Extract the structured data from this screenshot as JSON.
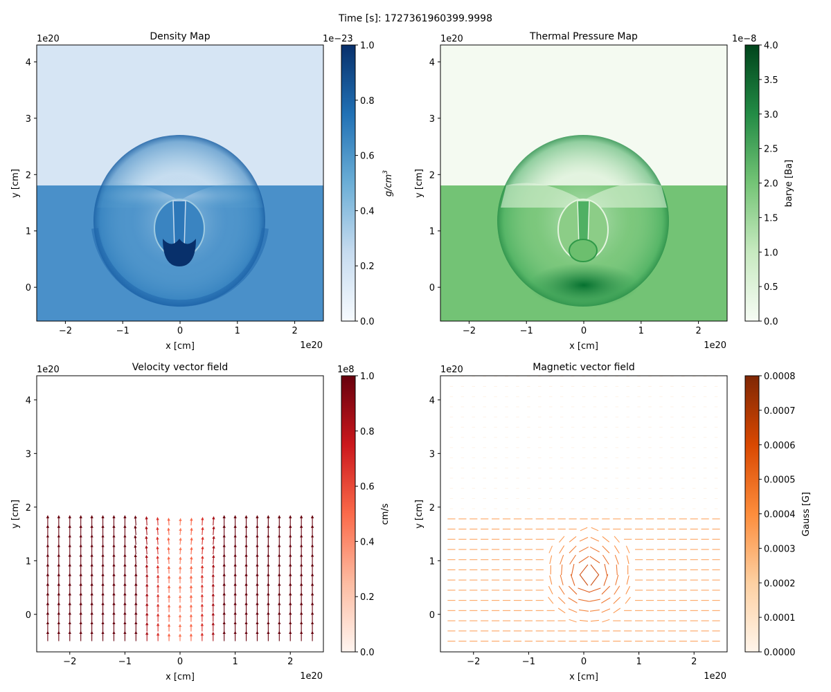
{
  "suptitle": "Time [s]: 1727361960399.9998",
  "chart_data": [
    {
      "type": "heatmap",
      "title": "Density Map",
      "xlabel": "x [cm]",
      "ylabel": "y [cm]",
      "x_multiplier": "1e20",
      "y_multiplier": "1e20",
      "xlim": [
        -2.5,
        2.5
      ],
      "ylim": [
        -0.6,
        4.3
      ],
      "xticks": [
        -2,
        -1,
        0,
        1,
        2
      ],
      "yticks": [
        0,
        1,
        2,
        3,
        4
      ],
      "colormap": "Blues",
      "colorbar": {
        "label": "g/cm3",
        "multiplier": "1e−23",
        "range": [
          0.0,
          1.0
        ],
        "ticks": [
          "0.0",
          "0.2",
          "0.4",
          "0.6",
          "0.8",
          "1.0"
        ]
      },
      "features": {
        "interface_y": 1.8,
        "upper_value": 0.16,
        "lower_value": 0.62,
        "shock_shell": {
          "center": [
            0.05,
            1.3
          ],
          "radius": 1.55,
          "shell_bottom_y": -0.35
        },
        "dense_core": {
          "center": [
            0.0,
            0.65
          ],
          "value": 1.0
        },
        "cap_apex_y": 1.55
      }
    },
    {
      "type": "heatmap",
      "title": "Thermal Pressure Map",
      "xlabel": "x [cm]",
      "ylabel": "y [cm]",
      "x_multiplier": "1e20",
      "y_multiplier": "1e20",
      "xlim": [
        -2.5,
        2.5
      ],
      "ylim": [
        -0.6,
        4.3
      ],
      "xticks": [
        -2,
        -1,
        0,
        1,
        2
      ],
      "yticks": [
        0,
        1,
        2,
        3,
        4
      ],
      "colormap": "Greens",
      "colorbar": {
        "label": "barye [Ba]",
        "multiplier": "1e−8",
        "range": [
          0.0,
          4.0
        ],
        "ticks": [
          "0.0",
          "0.5",
          "1.0",
          "1.5",
          "2.0",
          "2.5",
          "3.0",
          "3.5",
          "4.0"
        ]
      },
      "features": {
        "interface_y": 1.8,
        "upper_value": 0.05,
        "lower_value": 1.95,
        "shock_shell": {
          "center": [
            0.05,
            1.3
          ],
          "radius": 1.55,
          "shell_bottom_y": -0.35
        },
        "peak_center": [
          0.0,
          0.0
        ],
        "peak_value": 3.5
      }
    },
    {
      "type": "quiver",
      "title": "Velocity vector field",
      "xlabel": "x [cm]",
      "ylabel": "y [cm]",
      "x_multiplier": "1e20",
      "y_multiplier": "1e20",
      "xlim": [
        -2.6,
        2.6
      ],
      "ylim": [
        -0.7,
        4.45
      ],
      "xticks": [
        -2,
        -1,
        0,
        1,
        2
      ],
      "yticks": [
        0,
        1,
        2,
        3,
        4
      ],
      "colormap": "Reds",
      "colorbar": {
        "label": "cm/s",
        "multiplier": "1e8",
        "range": [
          0.0,
          1.0
        ],
        "ticks": [
          "0.0",
          "0.2",
          "0.4",
          "0.6",
          "0.8",
          "1.0"
        ]
      },
      "grid": {
        "x_start": -2.4,
        "x_step": 0.2,
        "nx": 25,
        "y_start": -0.5,
        "y_step": 0.18,
        "ny": 13
      },
      "flow": "vertical upward columns of magnitude ~1.0 away from center; divergent flow near x=0 below interface y~1.9"
    },
    {
      "type": "quiver",
      "title": "Magnetic vector field",
      "xlabel": "x [cm]",
      "ylabel": "y [cm]",
      "x_multiplier": "1e20",
      "y_multiplier": "1e20",
      "xlim": [
        -2.6,
        2.6
      ],
      "ylim": [
        -0.7,
        4.45
      ],
      "xticks": [
        -2,
        -1,
        0,
        1,
        2
      ],
      "yticks": [
        0,
        1,
        2,
        3,
        4
      ],
      "colormap": "Oranges",
      "colorbar": {
        "label": "Gauss [G]",
        "multiplier": "",
        "range": [
          0.0,
          0.0008
        ],
        "ticks": [
          "0.0000",
          "0.0001",
          "0.0002",
          "0.0003",
          "0.0004",
          "0.0005",
          "0.0006",
          "0.0007",
          "0.0008"
        ]
      },
      "grid": {
        "x_start": -2.4,
        "x_step": 0.2,
        "nx": 25,
        "y_start": -0.5,
        "y_step": 0.19,
        "ny": 27
      },
      "field": "horizontal field (~0.00025 G) below y~1.8, near-zero above; swirling stronger vectors (~0.0005 G) around (0.2, 0.6)"
    }
  ]
}
